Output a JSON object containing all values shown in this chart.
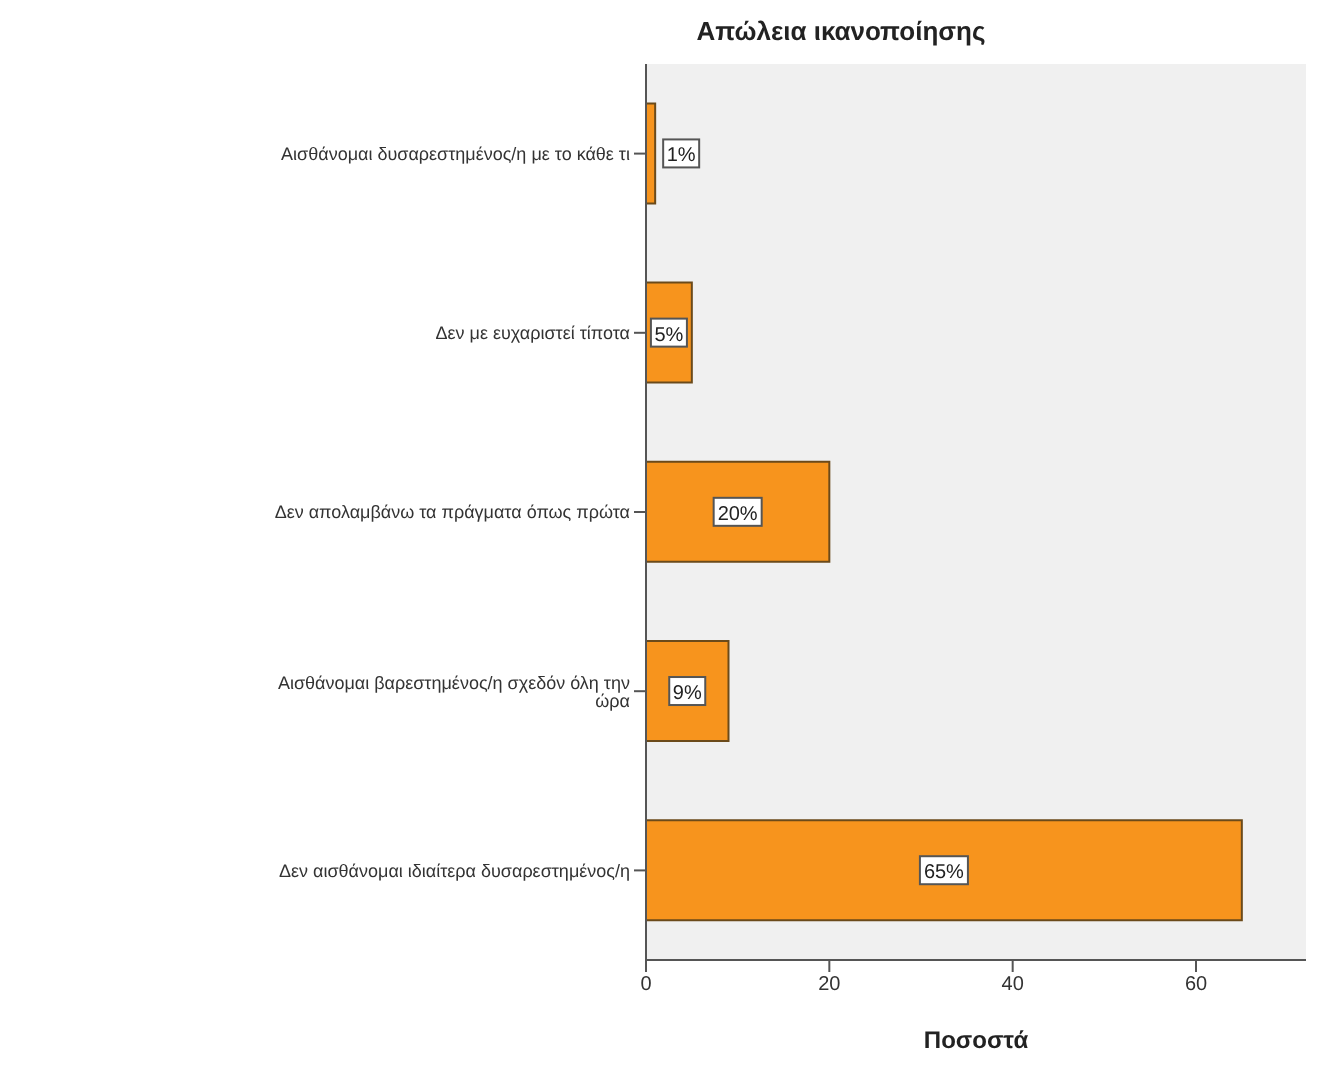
{
  "chart_data": {
    "type": "bar",
    "orientation": "horizontal",
    "title": "Απώλεια ικανοποίησης",
    "xlabel": "Ποσοστά",
    "categories": [
      "Αισθάνομαι δυσαρεστημένος/η με το κάθε τι",
      "Δεν με ευχαριστεί τίποτα",
      "Δεν απολαμβάνω τα πράγματα όπως πρώτα",
      "Αισθάνομαι βαρεστημένος/η σχεδόν όλη την ώρα",
      "Δεν αισθάνομαι ιδιαίτερα δυσαρεστημένος/η"
    ],
    "values": [
      1,
      5,
      20,
      9,
      65
    ],
    "value_labels": [
      "1%",
      "5%",
      "20%",
      "9%",
      "65%"
    ],
    "color": "#f7941d",
    "xlim": [
      0,
      72
    ],
    "xticks": [
      0,
      20,
      40,
      60
    ]
  }
}
